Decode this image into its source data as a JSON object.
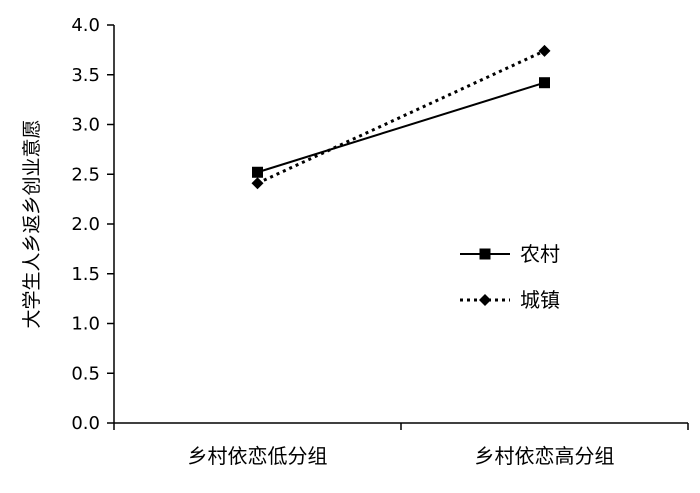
{
  "chart_data": {
    "type": "line",
    "title": "",
    "xlabel": "",
    "ylabel": "大学生人乡返乡创业意愿",
    "categories": [
      "乡村依恋低分组",
      "乡村依恋高分组"
    ],
    "ylim": [
      0,
      4.0
    ],
    "yticks": [
      "0.0",
      "0.5",
      "1.0",
      "1.5",
      "2.0",
      "2.5",
      "3.0",
      "3.5",
      "4.0"
    ],
    "grid": false,
    "legend_position": "center-right",
    "series": [
      {
        "name": "农村",
        "values": [
          2.52,
          3.42
        ],
        "line": "solid",
        "marker": "square",
        "color": "#000000"
      },
      {
        "name": "城镇",
        "values": [
          2.41,
          3.74
        ],
        "line": "dotted",
        "marker": "diamond",
        "color": "#000000"
      }
    ]
  }
}
